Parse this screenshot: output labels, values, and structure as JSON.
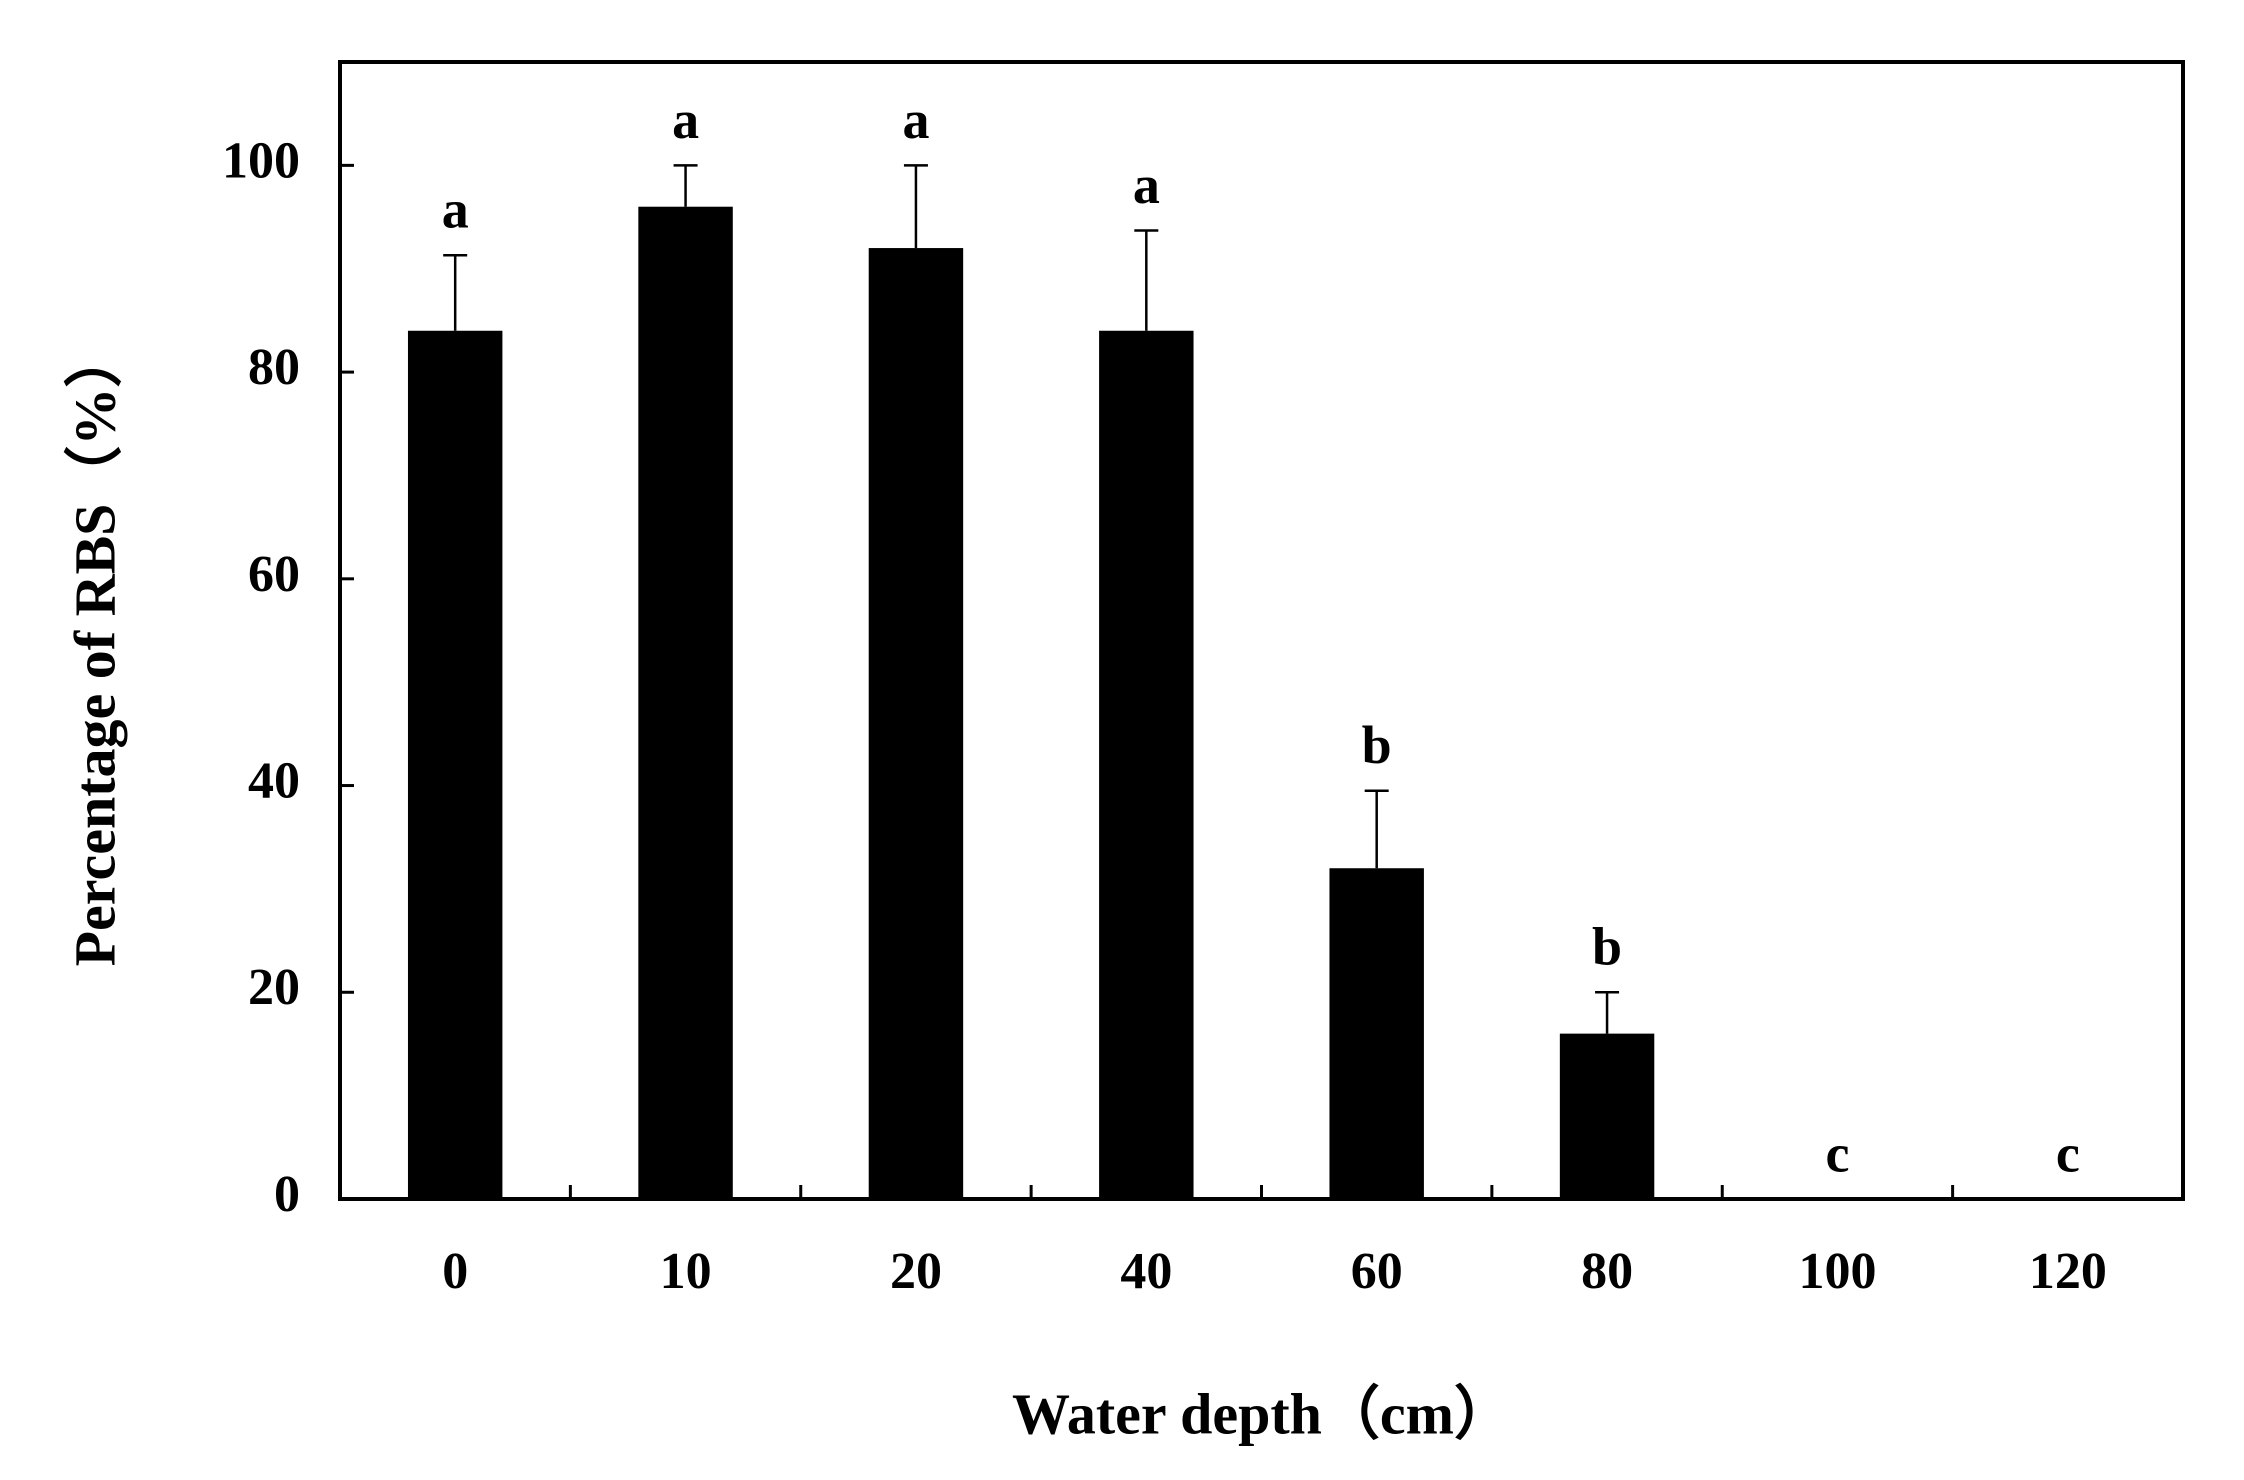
{
  "chart_data": {
    "type": "bar",
    "x_label": "Water depth（cm）",
    "y_label": "Percentage of RBS（%）",
    "categories": [
      "0",
      "10",
      "20",
      "40",
      "60",
      "80",
      "100",
      "120"
    ],
    "values": [
      84,
      96,
      92,
      84,
      32,
      16,
      0,
      0
    ],
    "errors": [
      7.3,
      4,
      8,
      9.7,
      7.5,
      4,
      0,
      0
    ],
    "annotations": [
      "a",
      "a",
      "a",
      "a",
      "b",
      "b",
      "c",
      "c"
    ],
    "color": "#000000",
    "ylim": [
      0,
      110
    ],
    "yticks": [
      0,
      20,
      40,
      60,
      80,
      100
    ]
  }
}
